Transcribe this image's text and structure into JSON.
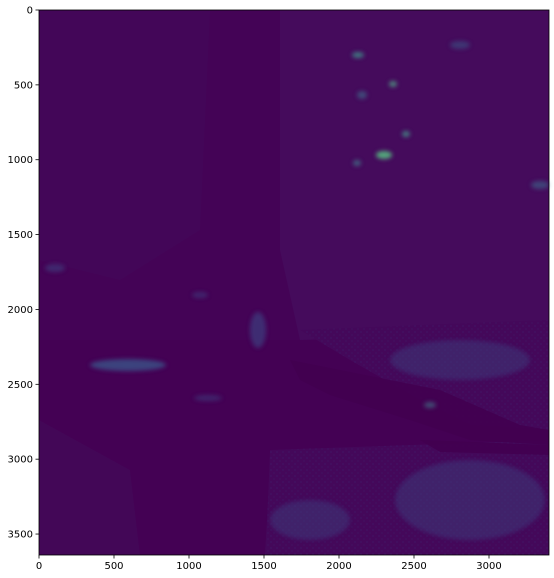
{
  "image": {
    "description_role": "satellite-style raster rendered with viridis-like colormap",
    "colormap_dark": "#440154",
    "colormap_mid": "#3b528b",
    "colormap_bright": "#5ec962"
  },
  "axes": {
    "x_ticks": [
      "0",
      "500",
      "1000",
      "1500",
      "2000",
      "2500",
      "3000"
    ],
    "y_ticks": [
      "0",
      "500",
      "1000",
      "1500",
      "2000",
      "2500",
      "3000",
      "3500"
    ],
    "x_tick_values": [
      0,
      500,
      1000,
      1500,
      2000,
      2500,
      3000
    ],
    "y_tick_values": [
      0,
      500,
      1000,
      1500,
      2000,
      2500,
      3000,
      3500
    ],
    "xlim": [
      0,
      3400
    ],
    "ylim": [
      3640,
      0
    ]
  }
}
